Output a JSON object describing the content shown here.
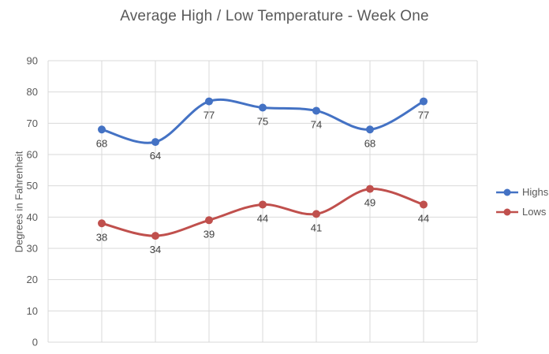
{
  "chart_data": {
    "type": "line",
    "title": "Average High / Low Temperature - Week One",
    "xlabel": "",
    "ylabel": "Degrees in Fahrenheit",
    "x": [
      1,
      2,
      3,
      4,
      5,
      6,
      7
    ],
    "xlim": [
      0,
      8
    ],
    "ylim": [
      0,
      90
    ],
    "y_ticks": [
      0,
      10,
      20,
      30,
      40,
      50,
      60,
      70,
      80,
      90
    ],
    "grid": true,
    "smooth_lines": true,
    "markers": true,
    "data_labels": true,
    "legend_position": "right",
    "series": [
      {
        "name": "Highs",
        "values": [
          68,
          64,
          77,
          75,
          74,
          68,
          77
        ],
        "color": "#4472C4"
      },
      {
        "name": "Lows",
        "values": [
          38,
          34,
          39,
          44,
          41,
          49,
          44
        ],
        "color": "#C0504D"
      }
    ],
    "colors": {
      "grid": "#D9D9D9",
      "axis_text": "#595959",
      "title_text": "#595959",
      "data_label_text": "#404040"
    }
  }
}
